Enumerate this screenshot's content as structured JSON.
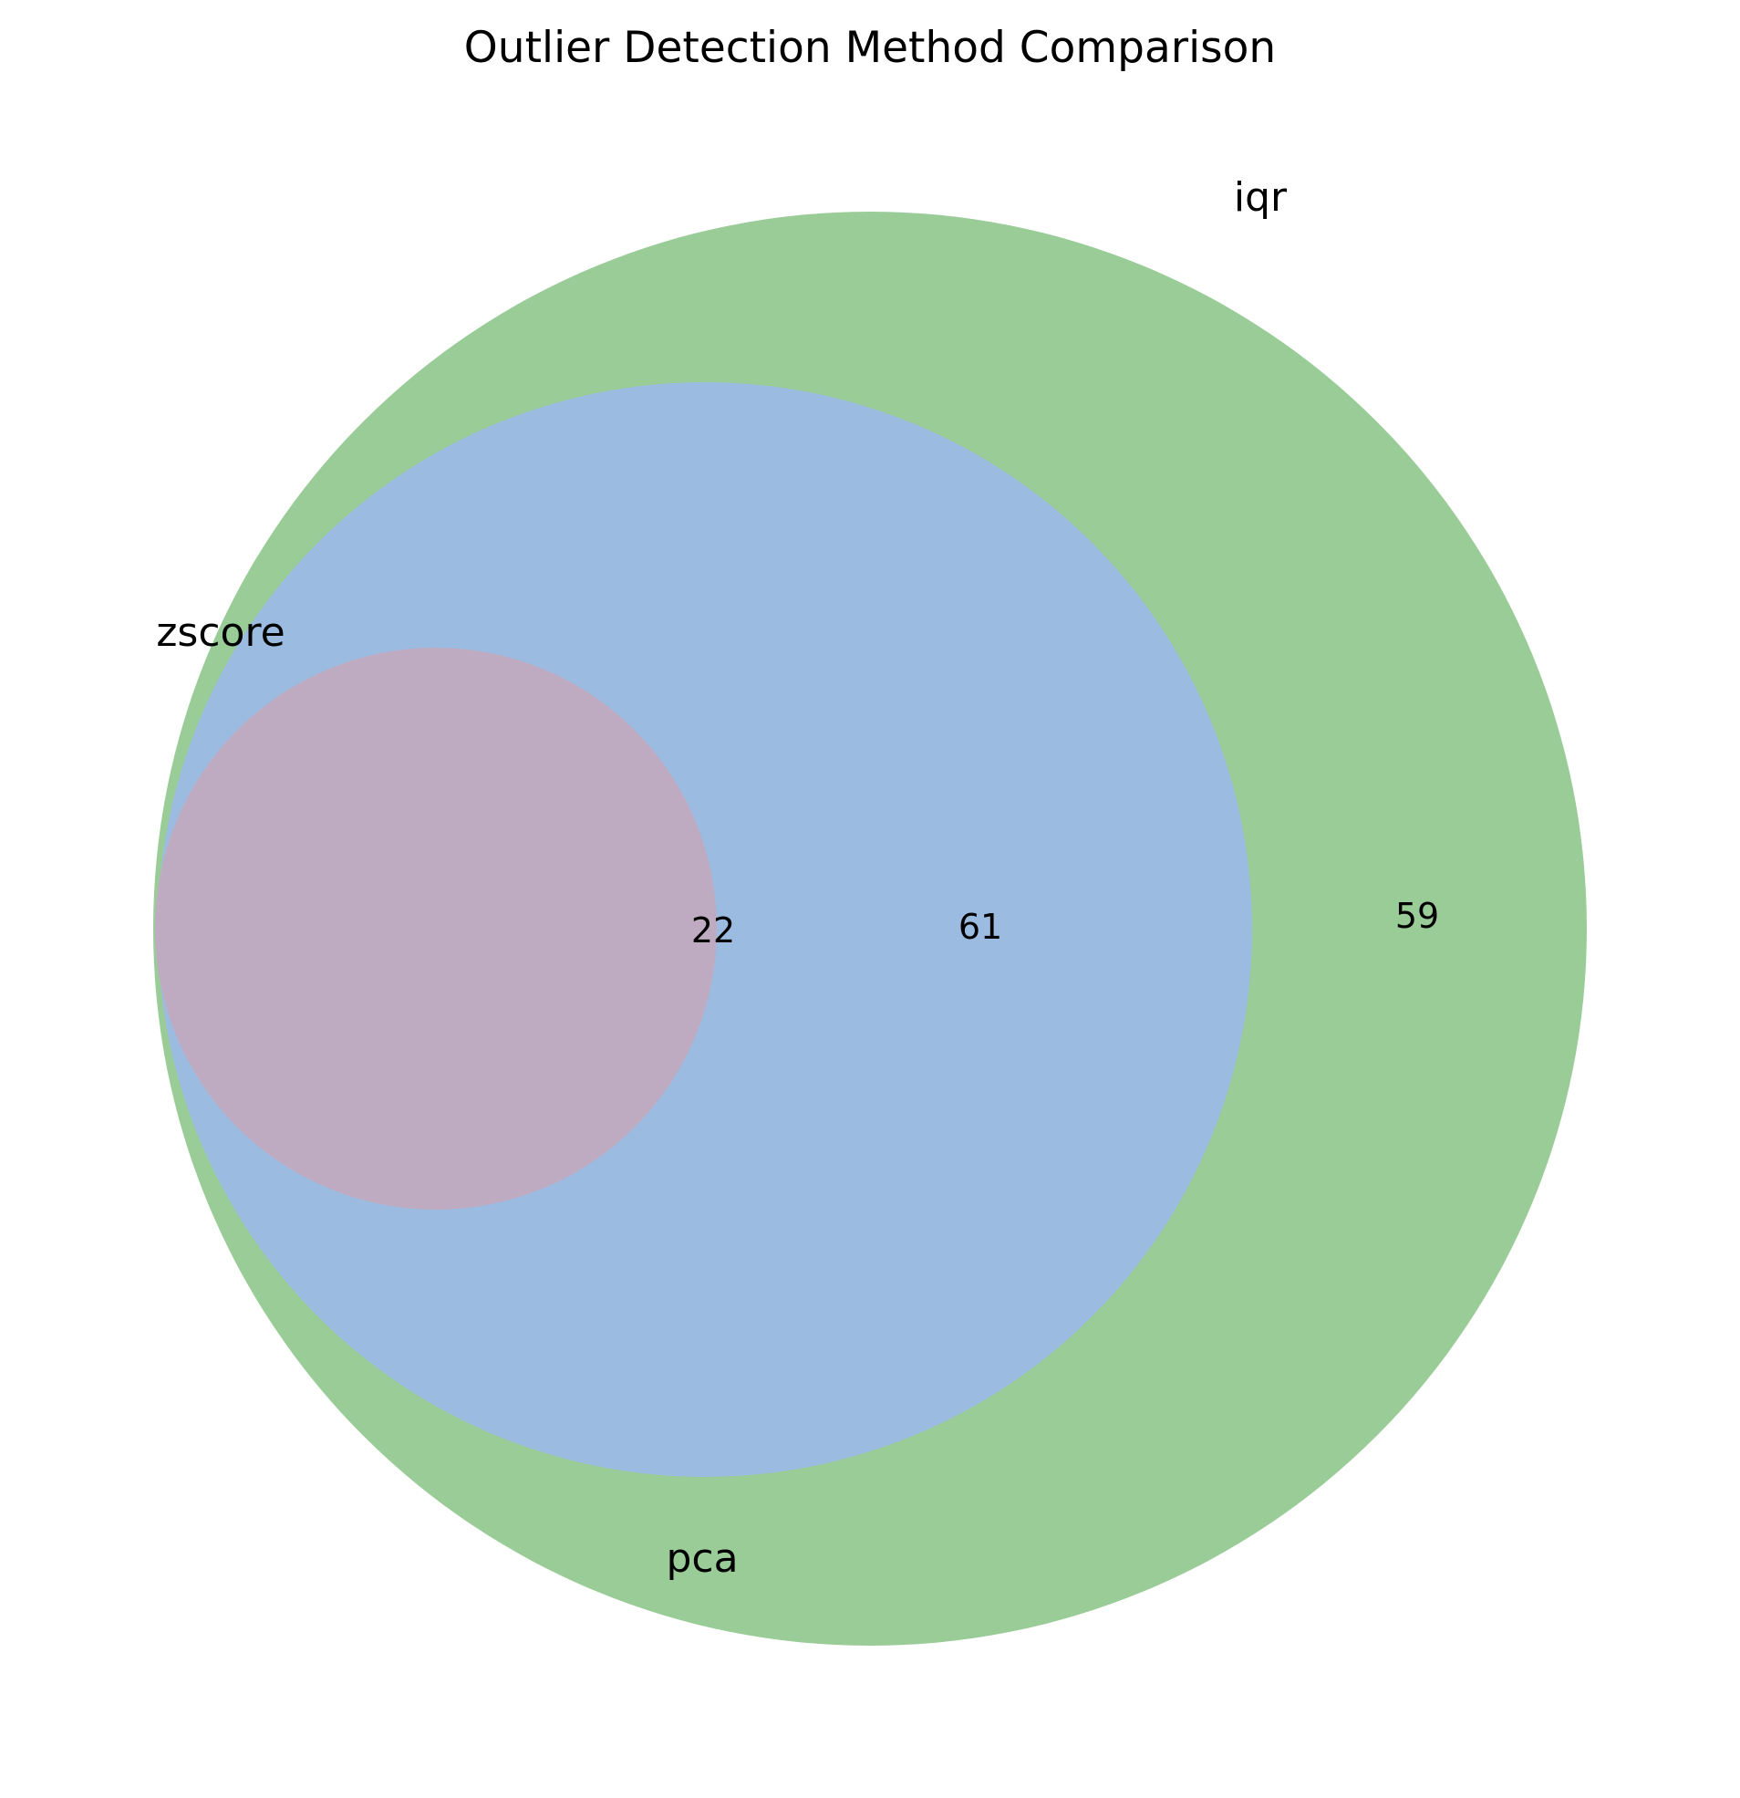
{
  "chart_data": {
    "type": "venn",
    "title": "Outlier Detection Method Comparison",
    "sets": [
      {
        "name": "iqr",
        "color": "#9acc98"
      },
      {
        "name": "pca",
        "color": "#9bbce0"
      },
      {
        "name": "zscore",
        "color": "#bfabc1"
      }
    ],
    "regions": [
      {
        "sets": [
          "iqr"
        ],
        "count": "59"
      },
      {
        "sets": [
          "iqr",
          "pca"
        ],
        "count": "61"
      },
      {
        "sets": [
          "iqr",
          "pca",
          "zscore"
        ],
        "count": "22"
      }
    ]
  }
}
